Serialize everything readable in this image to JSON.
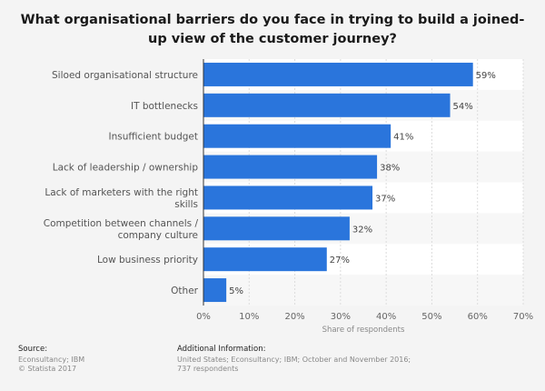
{
  "chart_data": {
    "type": "bar",
    "orientation": "horizontal",
    "title": "What organisational barriers do you face in trying to build a joined-up view of the customer journey?",
    "categories": [
      "Siloed organisational structure",
      "IT bottlenecks",
      "Insufficient budget",
      "Lack of leadership / ownership",
      "Lack of marketers with the right skills",
      "Competition between channels / company culture",
      "Low business priority",
      "Other"
    ],
    "values": [
      59,
      54,
      41,
      38,
      37,
      32,
      27,
      5
    ],
    "value_labels": [
      "59%",
      "54%",
      "41%",
      "38%",
      "37%",
      "32%",
      "27%",
      "5%"
    ],
    "xlim": [
      0,
      70
    ],
    "ticks": [
      "0%",
      "10%",
      "20%",
      "30%",
      "40%",
      "50%",
      "60%",
      "70%"
    ],
    "xlabel": "Share of respondents",
    "bar_color": "#2a75dc",
    "grid": true
  },
  "footer": {
    "source_heading": "Source:",
    "source_lines": [
      "Econsultancy; IBM",
      "© Statista 2017"
    ],
    "info_heading": "Additional Information:",
    "info_lines": [
      "United States; Econsultancy; IBM; October and November 2016;",
      "737 respondents"
    ]
  }
}
